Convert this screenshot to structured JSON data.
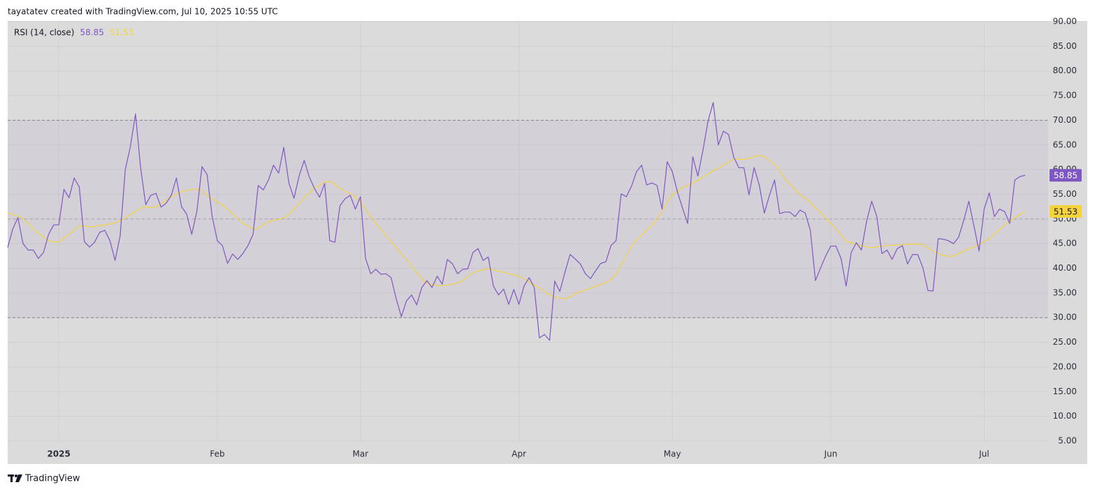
{
  "chart_data": {
    "type": "line",
    "header": "tayatatev created with TradingView.com, Jul 10, 2025 10:55 UTC",
    "indicator": "RSI (14, close)",
    "footer": "TradingView",
    "categories": [
      null,
      null,
      null,
      null,
      null,
      null,
      null,
      null,
      null,
      null,
      "2025",
      null,
      null,
      null,
      null,
      null,
      null,
      null,
      null,
      null,
      null,
      null,
      null,
      null,
      null,
      null,
      null,
      null,
      null,
      null,
      null,
      null,
      null,
      null,
      null,
      null,
      null,
      null,
      null,
      null,
      null,
      "Feb",
      null,
      null,
      null,
      null,
      null,
      null,
      null,
      null,
      null,
      null,
      null,
      null,
      null,
      null,
      null,
      null,
      null,
      null,
      null,
      null,
      null,
      null,
      null,
      null,
      null,
      null,
      null,
      "Mar",
      null,
      null,
      null,
      null,
      null,
      null,
      null,
      null,
      null,
      null,
      null,
      null,
      null,
      null,
      null,
      null,
      null,
      null,
      null,
      null,
      null,
      null,
      null,
      null,
      null,
      null,
      null,
      null,
      null,
      null,
      "Apr",
      null,
      null,
      null,
      null,
      null,
      null,
      null,
      null,
      null,
      null,
      null,
      null,
      null,
      null,
      null,
      null,
      null,
      null,
      null,
      null,
      null,
      null,
      null,
      null,
      null,
      null,
      null,
      null,
      null,
      "May",
      null,
      null,
      null,
      null,
      null,
      null,
      null,
      null,
      null,
      null,
      null,
      null,
      null,
      null,
      null,
      null,
      null,
      null,
      null,
      null,
      null,
      null,
      null,
      null,
      null,
      null,
      null,
      null,
      null,
      null,
      "Jun",
      null,
      null,
      null,
      null,
      null,
      null,
      null,
      null,
      null,
      null,
      null,
      null,
      null,
      null,
      null,
      null,
      null,
      null,
      null,
      null,
      null,
      null,
      null,
      null,
      null,
      null,
      null,
      null,
      null,
      "Jul",
      null,
      null,
      null,
      null,
      null,
      null,
      null,
      null
    ],
    "series": [
      {
        "color": "#7e57c2",
        "values": [
          44.2,
          48,
          50.3,
          45,
          43.7,
          43.7,
          42,
          43.2,
          46.9,
          48.8,
          48.8,
          56,
          54.3,
          58.3,
          56.5,
          45.4,
          44.3,
          45.3,
          47.3,
          47.7,
          45.6,
          41.6,
          46.6,
          60,
          64.7,
          71.3,
          60.4,
          52.9,
          54.8,
          55.2,
          52.4,
          53.2,
          54.8,
          58.3,
          52.5,
          51,
          46.9,
          51.5,
          60.6,
          59,
          50.5,
          45.6,
          44.6,
          41,
          42.9,
          41.8,
          43,
          44.6,
          46.9,
          56.8,
          55.9,
          57.9,
          60.9,
          59.3,
          64.5,
          57.3,
          54.2,
          58.7,
          61.9,
          58.5,
          56.2,
          54.4,
          57.2,
          45.6,
          45.3,
          52.7,
          54.1,
          54.8,
          52,
          54.5,
          42,
          38.9,
          39.8,
          38.8,
          38.9,
          38.1,
          33.8,
          30.2,
          33.4,
          34.6,
          32.6,
          36.1,
          37.5,
          36.1,
          38.4,
          36.8,
          41.8,
          40.9,
          38.9,
          39.8,
          39.9,
          43.2,
          44,
          41.6,
          42.3,
          36.4,
          34.6,
          35.8,
          32.7,
          35.7,
          32.7,
          36.4,
          38.1,
          36.1,
          25.9,
          26.6,
          25.4,
          37.4,
          35.3,
          39.2,
          42.8,
          41.9,
          40.9,
          38.9,
          37.9,
          39.5,
          41,
          41.3,
          44.6,
          45.6,
          55.1,
          54.5,
          56.6,
          59.6,
          60.9,
          56.9,
          57.3,
          56.8,
          52,
          61.6,
          59.6,
          55.5,
          52.2,
          49.1,
          62.6,
          58.7,
          64,
          69.9,
          73.6,
          65,
          67.8,
          67.1,
          62.6,
          60.4,
          60.4,
          54.9,
          60.4,
          56.9,
          51.2,
          54.8,
          57.9,
          51.1,
          51.4,
          51.4,
          50.5,
          51.8,
          51.2,
          47.7,
          37.5,
          40.1,
          42.5,
          44.5,
          44.5,
          42,
          36.4,
          43.2,
          45.2,
          43.7,
          49.5,
          53.6,
          50.5,
          43,
          43.7,
          41.8,
          44,
          44.6,
          40.9,
          42.8,
          42.8,
          40.2,
          35.5,
          35.4,
          46,
          45.9,
          45.6,
          45,
          46.3,
          49.7,
          53.6,
          48.6,
          43.5,
          52,
          55.3,
          50.5,
          52,
          51.5,
          49.1,
          57.9,
          58.6,
          58.85
        ]
      },
      {
        "color": "#f5d33c",
        "values": [
          51.2,
          50.9,
          50.6,
          50.1,
          49.1,
          48,
          47.1,
          46.3,
          45.6,
          45.4,
          45.3,
          46.1,
          46.9,
          47.7,
          48.6,
          48.6,
          48.4,
          48.5,
          48.7,
          48.8,
          49,
          49.2,
          49.6,
          50.2,
          50.9,
          51.5,
          52.2,
          52.4,
          52.3,
          52.4,
          53.1,
          53.8,
          54.5,
          55,
          55.5,
          55.8,
          56,
          56.1,
          55.6,
          54.8,
          54.1,
          53.4,
          52.8,
          51.9,
          51,
          50,
          49.2,
          48.6,
          47.9,
          48.1,
          48.8,
          49.4,
          49.7,
          49.9,
          50.2,
          50.9,
          52,
          53.1,
          54.3,
          55.3,
          56.2,
          56.8,
          57.5,
          57.7,
          57,
          56.2,
          55.6,
          55.1,
          54.5,
          53.4,
          52,
          50.4,
          49.1,
          47.9,
          46.6,
          45.4,
          44.2,
          42.9,
          41.8,
          40.5,
          39.2,
          37.9,
          37,
          36.8,
          36.5,
          36.5,
          36.6,
          36.8,
          37,
          37.5,
          38.3,
          39.1,
          39.4,
          39.7,
          39.9,
          39.7,
          39.4,
          39.2,
          38.9,
          38.7,
          38.4,
          37.9,
          37.2,
          36.6,
          36,
          35.3,
          34.6,
          34.2,
          34,
          33.8,
          34.2,
          34.8,
          35.3,
          35.6,
          36,
          36.3,
          36.7,
          37.1,
          37.8,
          38.8,
          40.6,
          42.5,
          44.4,
          45.7,
          46.7,
          47.7,
          48.8,
          49.9,
          51.6,
          53.4,
          54.9,
          55.6,
          56.4,
          56.8,
          57.3,
          57.8,
          58.5,
          59.1,
          59.8,
          60.3,
          60.9,
          61.5,
          62.1,
          62.1,
          62.1,
          62.3,
          62.6,
          62.9,
          62.6,
          61.9,
          61.1,
          59.8,
          58.2,
          57,
          56,
          54.9,
          54.2,
          53.3,
          52.3,
          51.3,
          50.2,
          49.1,
          48,
          46.7,
          45.5,
          45.2,
          44.8,
          44.5,
          44.4,
          44.2,
          44.3,
          44.5,
          44.6,
          44.7,
          44.7,
          44.8,
          44.9,
          44.9,
          44.9,
          44.8,
          44.2,
          43.5,
          43,
          42.7,
          42.4,
          42.5,
          43,
          43.5,
          43.9,
          44.3,
          44.8,
          45.4,
          46,
          46.9,
          47.8,
          48.8,
          49.5,
          50.2,
          50.9,
          51.53
        ]
      }
    ],
    "ylim": [
      5,
      90
    ],
    "yticks": [
      {
        "value": 5,
        "label": "5.00"
      },
      {
        "value": 10,
        "label": "10.00"
      },
      {
        "value": 15,
        "label": "15.00"
      },
      {
        "value": 20,
        "label": "20.00"
      },
      {
        "value": 25,
        "label": "25.00"
      },
      {
        "value": 30,
        "label": "30.00"
      },
      {
        "value": 35,
        "label": "35.00"
      },
      {
        "value": 40,
        "label": "40.00"
      },
      {
        "value": 45,
        "label": "45.00"
      },
      {
        "value": 50,
        "label": "50.00"
      },
      {
        "value": 55,
        "label": "55.00"
      },
      {
        "value": 60,
        "label": "60.00"
      },
      {
        "value": 65,
        "label": "65.00"
      },
      {
        "value": 70,
        "label": "70.00"
      },
      {
        "value": 75,
        "label": "75.00"
      },
      {
        "value": 80,
        "label": "80.00"
      },
      {
        "value": 85,
        "label": "85.00"
      },
      {
        "value": 90,
        "label": "90.00"
      }
    ],
    "bands": {
      "upper": 70,
      "middle": 50,
      "lower": 30,
      "color": "#7e57c2"
    },
    "grid": true
  }
}
